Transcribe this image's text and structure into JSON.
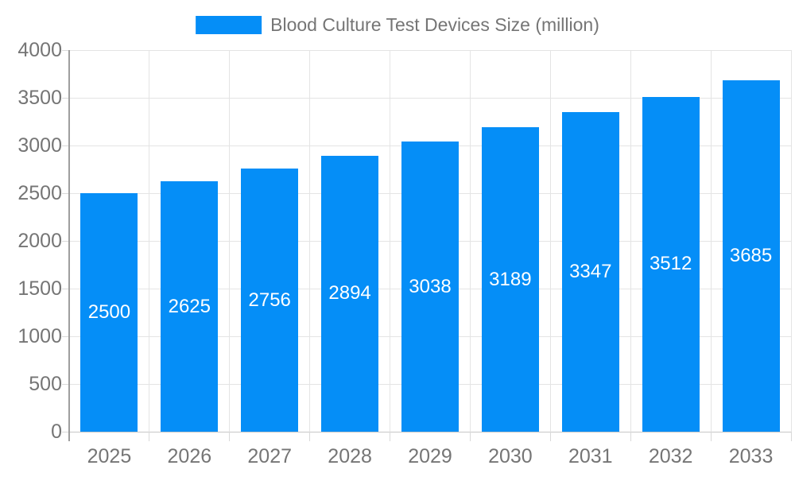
{
  "chart": {
    "legend": {
      "swatch_color": "#058EF7",
      "label": "Blood Culture Test Devices Size (million)"
    },
    "colors": {
      "bar": "#058EF7",
      "grid": "#e4e4e4",
      "axis_line": "#9e9e9e",
      "baseline": "#c6c6c6",
      "tick": "#d9d9d9",
      "axis_label": "#757575",
      "value_label": "#ffffff",
      "background": "#ffffff"
    }
  },
  "chart_data": {
    "type": "bar",
    "title": "Blood Culture Test Devices Size (million)",
    "series_name": "Blood Culture Test Devices Size (million)",
    "categories": [
      "2025",
      "2026",
      "2027",
      "2028",
      "2029",
      "2030",
      "2031",
      "2032",
      "2033"
    ],
    "values": [
      2500,
      2625,
      2756,
      2894,
      3038,
      3189,
      3347,
      3512,
      3685
    ],
    "xlabel": "",
    "ylabel": "",
    "ylim": [
      0,
      4000
    ],
    "ytick_interval": 500,
    "yticks": [
      0,
      500,
      1000,
      1500,
      2000,
      2500,
      3000,
      3500,
      4000
    ],
    "grid": true,
    "legend_position": "top",
    "value_labels": "inside-center"
  }
}
